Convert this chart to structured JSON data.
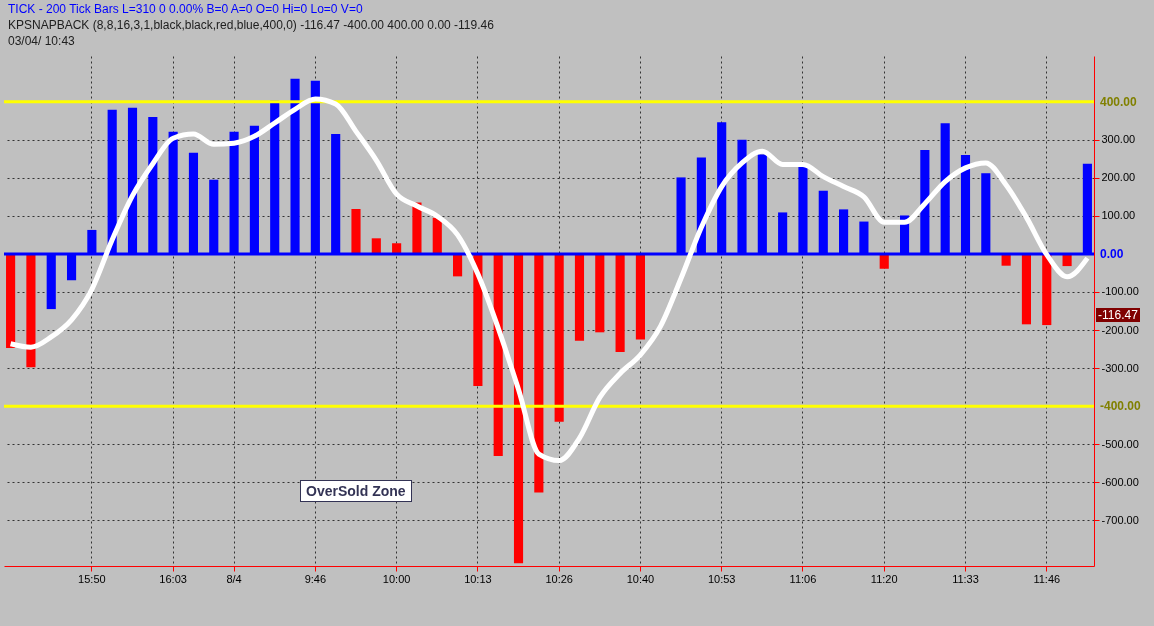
{
  "chart_data": {
    "type": "bar",
    "categories": [
      null,
      null,
      null,
      null,
      "15:50",
      null,
      null,
      null,
      "16:03",
      null,
      null,
      "8/4",
      null,
      null,
      null,
      "9:46",
      null,
      null,
      null,
      "10:00",
      null,
      null,
      null,
      "10:13",
      null,
      null,
      null,
      "10:26",
      null,
      null,
      null,
      "10:40",
      null,
      null,
      null,
      "10:53",
      null,
      null,
      null,
      "11:06",
      null,
      null,
      null,
      "11:20",
      null,
      null,
      null,
      "11:33",
      null,
      null,
      null,
      "11:46",
      null,
      null
    ],
    "series": [
      {
        "colors": [
          "#ff0000",
          "#ff0000",
          "#0000ff",
          "#0000ff",
          "#0000ff",
          "#0000ff",
          "#0000ff",
          "#0000ff",
          "#0000ff",
          "#0000ff",
          "#0000ff",
          "#0000ff",
          "#0000ff",
          "#0000ff",
          "#0000ff",
          "#0000ff",
          "#0000ff",
          "#ff0000",
          "#ff0000",
          "#ff0000",
          "#ff0000",
          "#ff0000",
          "#ff0000",
          "#ff0000",
          "#ff0000",
          "#ff0000",
          "#ff0000",
          "#ff0000",
          "#ff0000",
          "#ff0000",
          "#ff0000",
          "#ff0000",
          "#000000",
          "#0000ff",
          "#0000ff",
          "#0000ff",
          "#0000ff",
          "#0000ff",
          "#0000ff",
          "#0000ff",
          "#0000ff",
          "#0000ff",
          "#0000ff",
          "#ff0000",
          "#0000ff",
          "#0000ff",
          "#0000ff",
          "#0000ff",
          "#0000ff",
          "#ff0000",
          "#ff0000",
          "#ff0000",
          "#ff0000",
          "#0000ff"
        ],
        "values": [
          -247,
          -298,
          -145,
          -69,
          63,
          379,
          384,
          360,
          321,
          266,
          195,
          321,
          337,
          403,
          460,
          455,
          315,
          118,
          41,
          28,
          135,
          95,
          -59,
          -347,
          -531,
          -813,
          -627,
          -441,
          -228,
          -206,
          -258,
          -225,
          null,
          201,
          253,
          346,
          300,
          261,
          109,
          237,
          166,
          117,
          85,
          -39,
          101,
          273,
          343,
          260,
          212,
          -31,
          -185,
          -187,
          -32,
          237
        ]
      },
      {
        "type": "line",
        "color": "#ffffff",
        "values": [
          -236,
          -245,
          -218,
          -173,
          -93,
          37,
          153,
          237,
          304,
          315,
          288,
          291,
          309,
          344,
          380,
          407,
          394,
          322,
          246,
          157,
          126,
          99,
          50,
          -53,
          -195,
          -356,
          -526,
          -543,
          -484,
          -377,
          -314,
          -265,
          -189,
          -64,
          70,
          177,
          239,
          270,
          235,
          235,
          203,
          177,
          150,
          83,
          83,
          132,
          190,
          226,
          239,
          181,
          96,
          -2,
          -60,
          -11
        ]
      }
    ],
    "ylim": [
      -820,
      520
    ],
    "yticks": [
      {
        "value": 300,
        "label": "300.00"
      },
      {
        "value": 200,
        "label": "200.00"
      },
      {
        "value": 100,
        "label": "100.00"
      },
      {
        "value": -100,
        "label": "-100.00"
      },
      {
        "value": -200,
        "label": "-200.00"
      },
      {
        "value": -300,
        "label": "-300.00"
      },
      {
        "value": -500,
        "label": "-500.00"
      },
      {
        "value": -600,
        "label": "-600.00"
      },
      {
        "value": -700,
        "label": "-700.00"
      }
    ],
    "ref_lines": [
      {
        "axis": "y",
        "value": 400,
        "label": "400.00",
        "color": "#ffff00"
      },
      {
        "axis": "y",
        "value": -400,
        "label": "-400.00",
        "color": "#ffff00"
      },
      {
        "axis": "y",
        "value": 0,
        "label": "0.00",
        "color": "#0000ff"
      }
    ],
    "annotations": [
      "TICK - 200 Tick Bars  L=310  0  0.00%  B=0  A=0  O=0  Hi=0  Lo=0  V=0",
      "KPSNAPBACK (8,8,16,3,1,black,black,red,blue,400,0)  -116.47  -400.00  400.00  0.00  -119.46",
      "03/04/ 10:43",
      "-116.47",
      "OverSold Zone"
    ],
    "grid": true
  }
}
